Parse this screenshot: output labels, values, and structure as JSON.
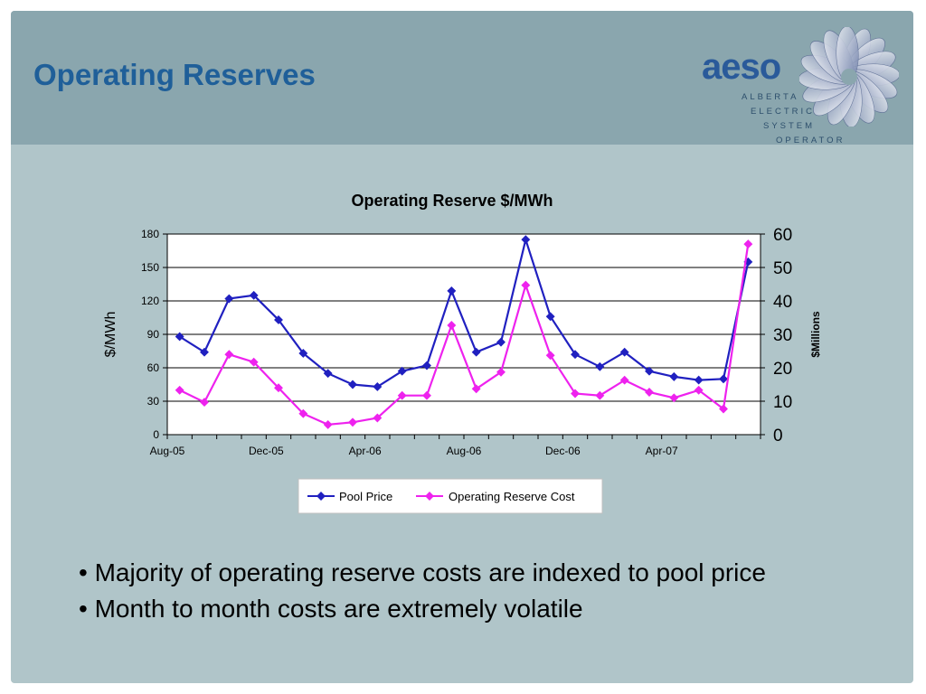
{
  "slide": {
    "title": "Operating Reserves",
    "bullets": [
      "• Majority of operating reserve costs are indexed to pool price",
      "• Month to month costs are extremely volatile"
    ]
  },
  "logo": {
    "wordmark": "aeso",
    "lines": [
      "ALBERTA",
      "ELECTRIC",
      "SYSTEM",
      "OPERATOR"
    ]
  },
  "chart_data": {
    "type": "line",
    "title": "Operating Reserve $/MWh",
    "ylabel": "$/MWh",
    "y2label": "$Millions",
    "ylim": [
      0,
      180
    ],
    "y2lim": [
      0,
      60
    ],
    "yticks": [
      0,
      30,
      60,
      90,
      120,
      150,
      180
    ],
    "y2ticks": [
      0,
      10,
      20,
      30,
      40,
      50,
      60
    ],
    "categories": [
      "Aug-05",
      "Sep-05",
      "Oct-05",
      "Nov-05",
      "Dec-05",
      "Jan-06",
      "Feb-06",
      "Mar-06",
      "Apr-06",
      "May-06",
      "Jun-06",
      "Jul-06",
      "Aug-06",
      "Sep-06",
      "Oct-06",
      "Nov-06",
      "Dec-06",
      "Jan-07",
      "Feb-07",
      "Mar-07",
      "Apr-07",
      "May-07",
      "Jun-07",
      "Jul-07"
    ],
    "xticks": [
      "Aug-05",
      "Dec-05",
      "Apr-06",
      "Aug-06",
      "Dec-06",
      "Apr-07"
    ],
    "grid": true,
    "legend": "bottom",
    "series": [
      {
        "name": "Pool Price",
        "axis": "left",
        "color": "#2020c0",
        "values": [
          88,
          74,
          122,
          125,
          103,
          73,
          55,
          45,
          43,
          57,
          62,
          129,
          74,
          83,
          175,
          106,
          72,
          61,
          74,
          57,
          52,
          49,
          50,
          155
        ]
      },
      {
        "name": "Operating Reserve Cost",
        "axis": "right",
        "color": "#ee22ee",
        "values": [
          13.3,
          9.7,
          24.0,
          21.7,
          14.0,
          6.3,
          3.0,
          3.7,
          5.0,
          11.7,
          11.7,
          32.7,
          13.7,
          18.7,
          44.7,
          23.7,
          12.3,
          11.7,
          16.3,
          12.7,
          11.0,
          13.3,
          7.7,
          57.0
        ]
      }
    ]
  }
}
